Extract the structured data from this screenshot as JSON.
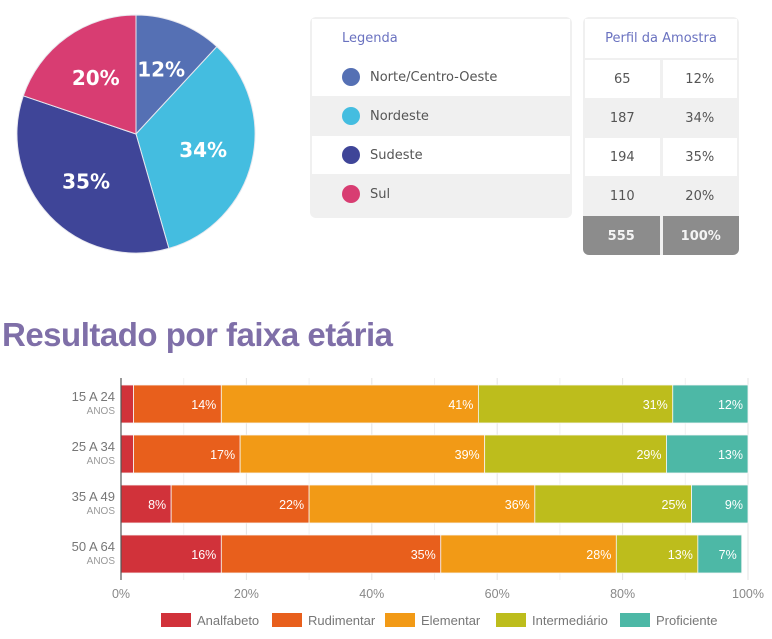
{
  "chart_data": [
    {
      "type": "pie",
      "title": "",
      "categories": [
        "Norte/Centro-Oeste",
        "Nordeste",
        "Sudeste",
        "Sul"
      ],
      "values": [
        12,
        34,
        35,
        20
      ],
      "labels": [
        "12%",
        "34%",
        "35%",
        "20%"
      ],
      "colors": [
        "#5570b4",
        "#44bde0",
        "#3f4598",
        "#d83d72"
      ]
    },
    {
      "type": "bar",
      "orientation": "horizontal",
      "stacked": true,
      "title": "Resultado por faixa etária",
      "categories": [
        {
          "label": "15 A 24",
          "sub": "ANOS"
        },
        {
          "label": "25 A 34",
          "sub": "ANOS"
        },
        {
          "label": "35 A 49",
          "sub": "ANOS"
        },
        {
          "label": "50 A 64",
          "sub": "ANOS"
        }
      ],
      "series": [
        {
          "name": "Analfabeto",
          "color": "#d1323a",
          "values": [
            2,
            2,
            8,
            16
          ]
        },
        {
          "name": "Rudimentar",
          "color": "#e85f1c",
          "values": [
            14,
            17,
            22,
            35
          ]
        },
        {
          "name": "Elementar",
          "color": "#f29a16",
          "values": [
            41,
            39,
            36,
            28
          ]
        },
        {
          "name": "Intermediário",
          "color": "#bdbd1c",
          "values": [
            31,
            29,
            25,
            13
          ]
        },
        {
          "name": "Proficiente",
          "color": "#4db8a6",
          "values": [
            12,
            13,
            9,
            7
          ]
        }
      ],
      "xlim": [
        0,
        100
      ],
      "xticks": [
        "0%",
        "20%",
        "40%",
        "60%",
        "80%",
        "100%"
      ],
      "grid": true,
      "legend_position": "bottom"
    }
  ],
  "legend_table": {
    "header": "Legenda",
    "rows": [
      {
        "label": "Norte/Centro-Oeste",
        "color": "#5570b4"
      },
      {
        "label": "Nordeste",
        "color": "#44bde0"
      },
      {
        "label": "Sudeste",
        "color": "#3f4598"
      },
      {
        "label": "Sul",
        "color": "#d83d72"
      }
    ]
  },
  "perfil_table": {
    "header": "Perfil da Amostra",
    "rows": [
      {
        "count": "65",
        "pct": "12%"
      },
      {
        "count": "187",
        "pct": "34%"
      },
      {
        "count": "194",
        "pct": "35%"
      },
      {
        "count": "110",
        "pct": "20%"
      }
    ],
    "total": {
      "count": "555",
      "pct": "100%"
    }
  },
  "section_title": "Resultado por faixa etária"
}
